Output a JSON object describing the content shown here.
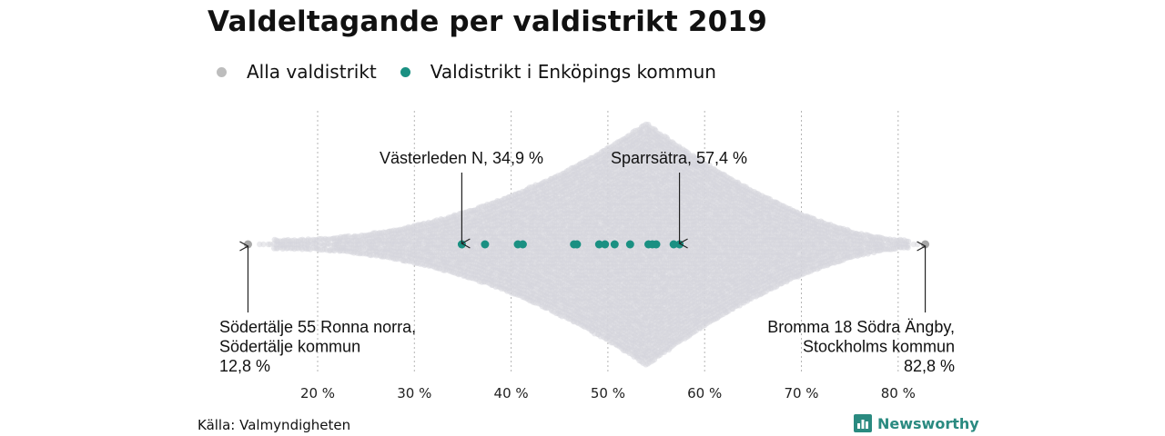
{
  "title": "Valdeltagande per valdistrikt 2019",
  "legend": [
    {
      "label": "Alla valdistrikt",
      "color": "#bdbdbd"
    },
    {
      "label": "Valdistrikt i Enköpings kommun",
      "color": "#1a9082"
    }
  ],
  "source": "Källa: Valmyndigheten",
  "brand": "Newsworthy",
  "chart_data": {
    "type": "scatter",
    "subtype": "beeswarm",
    "xlim": [
      12.8,
      82.8
    ],
    "x_ticks": [
      20,
      30,
      40,
      50,
      60,
      70,
      80
    ],
    "x_tick_labels": [
      "20 %",
      "30 %",
      "40 %",
      "50 %",
      "60 %",
      "70 %",
      "80 %"
    ],
    "grid": "vertical dotted",
    "series": [
      {
        "name": "Alla valdistrikt",
        "color": "#d6d6dc",
        "distribution": "dense cloud of all districts, peak near 54 %",
        "extremes": [
          12.8,
          82.8
        ]
      },
      {
        "name": "Valdistrikt i Enköpings kommun",
        "color": "#1a9082",
        "values": [
          34.9,
          37.3,
          40.7,
          41.2,
          46.5,
          46.8,
          49.1,
          49.7,
          50.7,
          52.3,
          54.2,
          54.6,
          55.0,
          56.8,
          57.4
        ]
      }
    ],
    "annotations": [
      {
        "lines": [
          "Västerleden N, 34,9 %"
        ],
        "x": 34.9
      },
      {
        "lines": [
          "Sparrsätra, 57,4 %"
        ],
        "x": 57.4
      },
      {
        "lines": [
          "Södertälje 55 Ronna norra,",
          "Södertälje kommun",
          "12,8 %"
        ],
        "x": 12.8
      },
      {
        "lines": [
          "Bromma 18 Södra Ängby,",
          "Stockholms kommun",
          "82,8 %"
        ],
        "x": 82.8
      }
    ]
  }
}
